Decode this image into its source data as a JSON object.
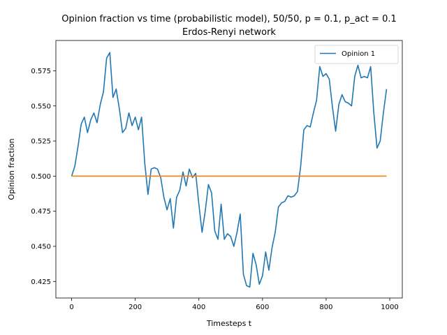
{
  "chart_data": {
    "type": "line",
    "title": "Opinion fraction vs time (probabilistic model), 50/50, p = 0.1, p_act = 0.1",
    "subtitle": "Erdos-Renyi network",
    "xlabel": "Timesteps t",
    "ylabel": "Opinion fraction",
    "xlim": [
      -49.5,
      1039.5
    ],
    "ylim": [
      0.4132,
      0.5966
    ],
    "x_ticks": [
      0,
      200,
      400,
      600,
      800,
      1000
    ],
    "y_ticks": [
      0.425,
      0.45,
      0.475,
      0.5,
      0.525,
      0.55,
      0.575
    ],
    "grid": false,
    "legend": "top-right",
    "x": [
      0,
      10,
      20,
      30,
      40,
      50,
      60,
      70,
      80,
      90,
      100,
      110,
      120,
      130,
      140,
      150,
      160,
      170,
      180,
      190,
      200,
      210,
      220,
      230,
      240,
      250,
      260,
      270,
      280,
      290,
      300,
      310,
      320,
      330,
      340,
      350,
      360,
      370,
      380,
      390,
      400,
      410,
      420,
      430,
      440,
      450,
      460,
      470,
      480,
      490,
      500,
      510,
      520,
      530,
      540,
      550,
      560,
      570,
      580,
      590,
      600,
      610,
      620,
      630,
      640,
      650,
      660,
      670,
      680,
      690,
      700,
      710,
      720,
      730,
      740,
      750,
      760,
      770,
      780,
      790,
      800,
      810,
      820,
      830,
      840,
      850,
      860,
      870,
      880,
      890,
      900,
      910,
      920,
      930,
      940,
      950,
      960,
      970,
      980,
      990
    ],
    "series": [
      {
        "name": "Opinion 1",
        "color": "#1f77b4",
        "values": [
          0.5,
          0.507,
          0.521,
          0.537,
          0.542,
          0.531,
          0.54,
          0.545,
          0.538,
          0.551,
          0.56,
          0.584,
          0.588,
          0.556,
          0.562,
          0.548,
          0.531,
          0.534,
          0.545,
          0.536,
          0.542,
          0.533,
          0.542,
          0.509,
          0.487,
          0.505,
          0.506,
          0.505,
          0.499,
          0.485,
          0.476,
          0.484,
          0.463,
          0.485,
          0.49,
          0.503,
          0.493,
          0.505,
          0.499,
          0.502,
          0.48,
          0.46,
          0.475,
          0.494,
          0.488,
          0.461,
          0.455,
          0.48,
          0.455,
          0.459,
          0.457,
          0.45,
          0.46,
          0.473,
          0.43,
          0.422,
          0.421,
          0.445,
          0.437,
          0.423,
          0.429,
          0.446,
          0.433,
          0.449,
          0.46,
          0.478,
          0.481,
          0.482,
          0.486,
          0.485,
          0.486,
          0.489,
          0.507,
          0.533,
          0.536,
          0.535,
          0.545,
          0.554,
          0.578,
          0.571,
          0.573,
          0.569,
          0.549,
          0.532,
          0.551,
          0.558,
          0.553,
          0.552,
          0.55,
          0.571,
          0.579,
          0.57,
          0.571,
          0.57,
          0.578,
          0.545,
          0.52,
          0.525,
          0.545,
          0.562
        ]
      },
      {
        "color": "#ff7f0e",
        "values": [
          0.5,
          0.5,
          0.5,
          0.5,
          0.5,
          0.5,
          0.5,
          0.5,
          0.5,
          0.5,
          0.5,
          0.5,
          0.5,
          0.5,
          0.5,
          0.5,
          0.5,
          0.5,
          0.5,
          0.5,
          0.5,
          0.5,
          0.5,
          0.5,
          0.5,
          0.5,
          0.5,
          0.5,
          0.5,
          0.5,
          0.5,
          0.5,
          0.5,
          0.5,
          0.5,
          0.5,
          0.5,
          0.5,
          0.5,
          0.5,
          0.5,
          0.5,
          0.5,
          0.5,
          0.5,
          0.5,
          0.5,
          0.5,
          0.5,
          0.5,
          0.5,
          0.5,
          0.5,
          0.5,
          0.5,
          0.5,
          0.5,
          0.5,
          0.5,
          0.5,
          0.5,
          0.5,
          0.5,
          0.5,
          0.5,
          0.5,
          0.5,
          0.5,
          0.5,
          0.5,
          0.5,
          0.5,
          0.5,
          0.5,
          0.5,
          0.5,
          0.5,
          0.5,
          0.5,
          0.5,
          0.5,
          0.5,
          0.5,
          0.5,
          0.5,
          0.5,
          0.5,
          0.5,
          0.5,
          0.5,
          0.5,
          0.5,
          0.5,
          0.5,
          0.5,
          0.5,
          0.5,
          0.5,
          0.5,
          0.5
        ]
      }
    ]
  }
}
